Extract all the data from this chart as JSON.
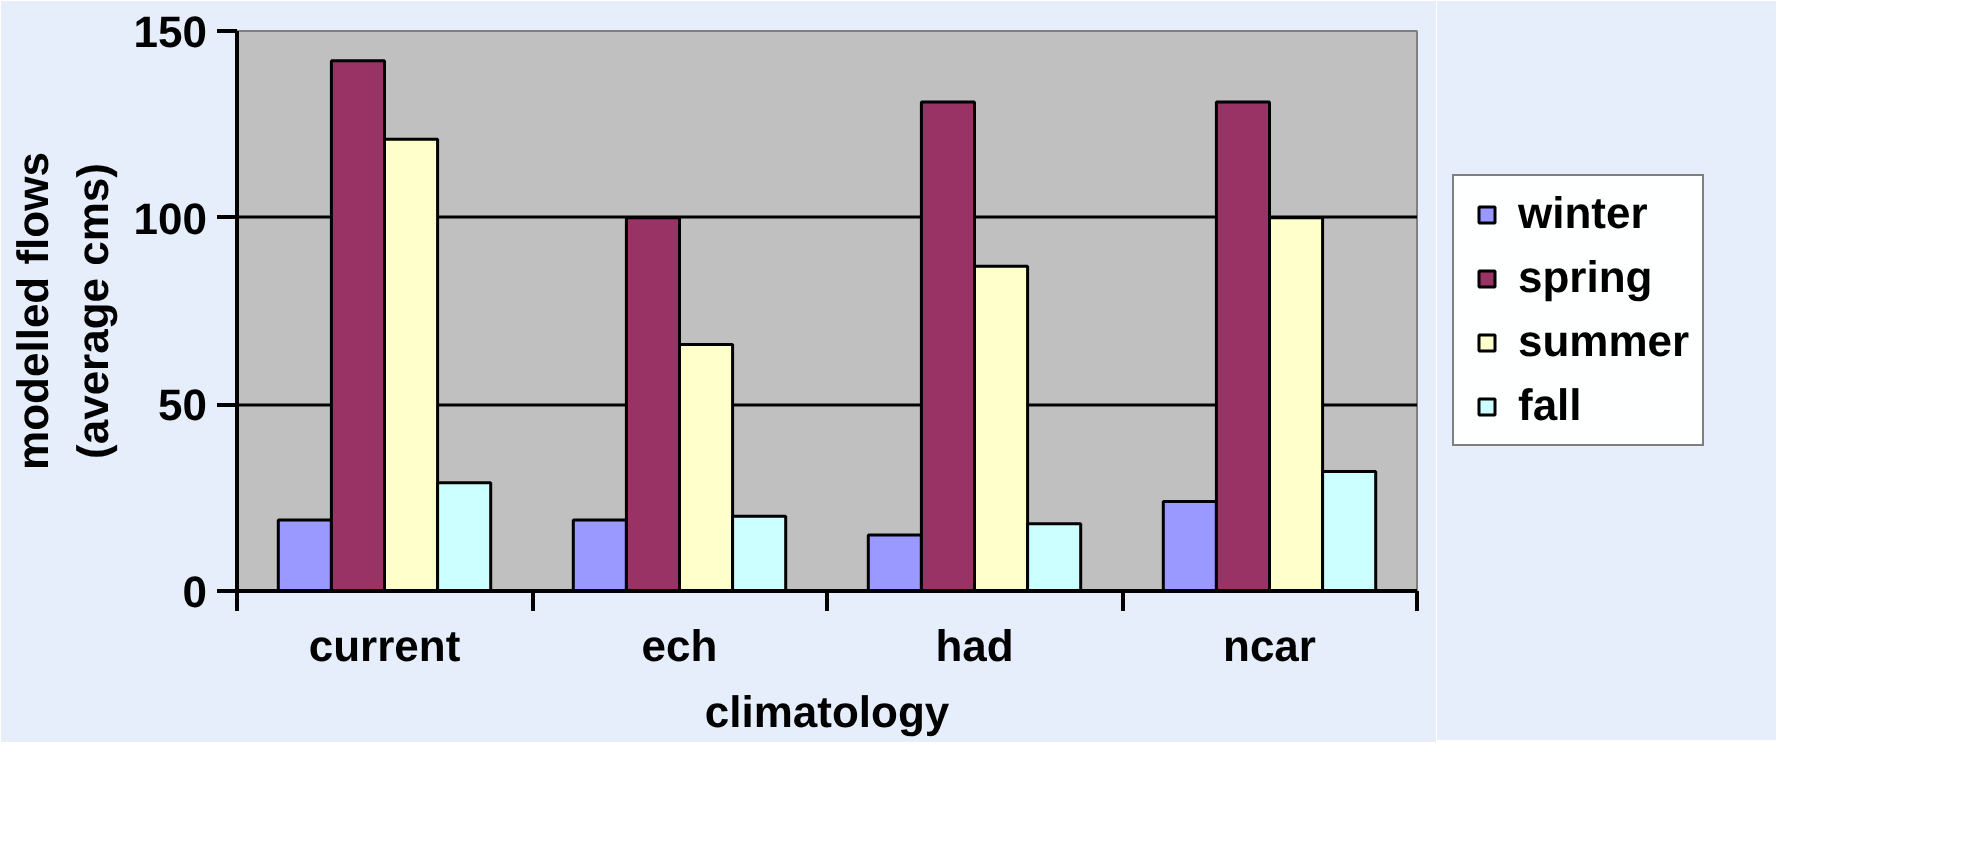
{
  "chart_data": {
    "type": "bar",
    "xlabel": "climatology",
    "ylabel": "modelled flows\n(average cms)",
    "categories": [
      "current",
      "ech",
      "had",
      "ncar"
    ],
    "series": [
      {
        "name": "winter",
        "color": "#9999ff",
        "values": [
          19,
          19,
          15,
          24
        ]
      },
      {
        "name": "spring",
        "color": "#993366",
        "values": [
          142,
          100,
          131,
          131
        ]
      },
      {
        "name": "summer",
        "color": "#ffffcc",
        "values": [
          121,
          66,
          87,
          100
        ]
      },
      {
        "name": "fall",
        "color": "#ccffff",
        "values": [
          29,
          20,
          18,
          32
        ]
      }
    ],
    "ylim": [
      0,
      150
    ],
    "yticks": [
      0,
      50,
      100,
      150
    ],
    "grid": "y",
    "legend": "right"
  }
}
